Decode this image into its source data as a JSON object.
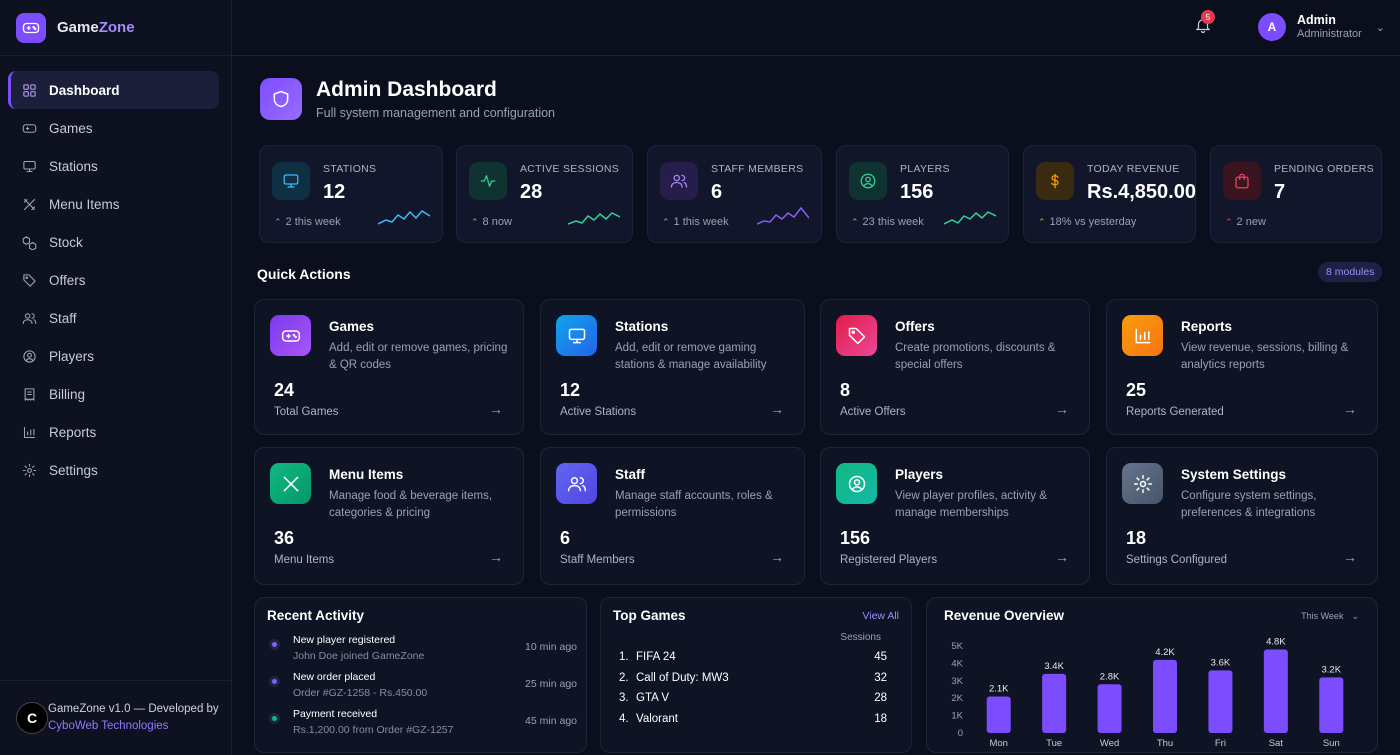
{
  "brand": {
    "name_part1": "Game",
    "name_part2": "Zone"
  },
  "sidebar": {
    "items": [
      {
        "label": "Dashboard",
        "icon": "grid-icon"
      },
      {
        "label": "Games",
        "icon": "gamepad-icon"
      },
      {
        "label": "Stations",
        "icon": "monitor-icon"
      },
      {
        "label": "Menu Items",
        "icon": "utensils-icon"
      },
      {
        "label": "Stock",
        "icon": "boxes-icon"
      },
      {
        "label": "Offers",
        "icon": "tag-icon"
      },
      {
        "label": "Staff",
        "icon": "users-icon"
      },
      {
        "label": "Players",
        "icon": "user-circle-icon"
      },
      {
        "label": "Billing",
        "icon": "receipt-icon"
      },
      {
        "label": "Reports",
        "icon": "bar-chart-icon"
      },
      {
        "label": "Settings",
        "icon": "gear-icon"
      }
    ]
  },
  "footer": {
    "avatar": "C",
    "line1": "GameZone v1.0 — Developed by",
    "link": "CyboWeb Technologies"
  },
  "topbar": {
    "notif_count": "5",
    "user_initial": "A",
    "user_name": "Admin",
    "user_role": "Administrator"
  },
  "header": {
    "title": "Admin Dashboard",
    "subtitle": "Full system management and configuration"
  },
  "stats": [
    {
      "label": "STATIONS",
      "value": "12",
      "trend": "2 this week",
      "color": "#38bdf8"
    },
    {
      "label": "ACTIVE SESSIONS",
      "value": "28",
      "trend": "8 now",
      "color": "#34d399"
    },
    {
      "label": "STAFF MEMBERS",
      "value": "6",
      "trend": "1 this week",
      "color": "#8b5cf6"
    },
    {
      "label": "PLAYERS",
      "value": "156",
      "trend": "23 this week",
      "color": "#34d399"
    },
    {
      "label": "TODAY REVENUE",
      "value": "Rs.4,850.00",
      "trend": "18% vs yesterday",
      "color": "#f59e0b"
    },
    {
      "label": "PENDING ORDERS",
      "value": "7",
      "trend": "2 new",
      "color": "#f43f5e"
    }
  ],
  "quick_actions": {
    "title": "Quick Actions",
    "badge": "8 modules",
    "cards": [
      {
        "title": "Games",
        "desc": "Add, edit or remove games, pricing & QR codes",
        "count": "24",
        "count_label": "Total Games"
      },
      {
        "title": "Stations",
        "desc": "Add, edit or remove gaming stations & manage availability",
        "count": "12",
        "count_label": "Active Stations"
      },
      {
        "title": "Offers",
        "desc": "Create promotions, discounts & special offers",
        "count": "8",
        "count_label": "Active Offers"
      },
      {
        "title": "Reports",
        "desc": "View revenue, sessions, billing & analytics reports",
        "count": "25",
        "count_label": "Reports Generated"
      },
      {
        "title": "Menu Items",
        "desc": "Manage food & beverage items, categories & pricing",
        "count": "36",
        "count_label": "Menu Items"
      },
      {
        "title": "Staff",
        "desc": "Manage staff accounts, roles & permissions",
        "count": "6",
        "count_label": "Staff Members"
      },
      {
        "title": "Players",
        "desc": "View player profiles, activity & manage memberships",
        "count": "156",
        "count_label": "Registered Players"
      },
      {
        "title": "System Settings",
        "desc": "Configure system settings, preferences & integrations",
        "count": "18",
        "count_label": "Settings Configured"
      }
    ]
  },
  "activity": {
    "title": "Recent Activity",
    "items": [
      {
        "title": "New player registered",
        "detail": "John Doe joined GameZone",
        "time": "10 min ago",
        "color": "#8b5cf6"
      },
      {
        "title": "New order placed",
        "detail": "Order #GZ-1258 - Rs.450.00",
        "time": "25 min ago",
        "color": "#8b5cf6"
      },
      {
        "title": "Payment received",
        "detail": "Rs.1,200.00 from Order #GZ-1257",
        "time": "45 min ago",
        "color": "#10b981"
      }
    ]
  },
  "top_games": {
    "title": "Top Games",
    "view_all": "View All",
    "sessions_header": "Sessions",
    "games": [
      {
        "rank": "1.",
        "name": "FIFA 24",
        "sessions": "45"
      },
      {
        "rank": "2.",
        "name": "Call of Duty: MW3",
        "sessions": "32"
      },
      {
        "rank": "3.",
        "name": "GTA V",
        "sessions": "28"
      },
      {
        "rank": "4.",
        "name": "Valorant",
        "sessions": "18"
      }
    ]
  },
  "revenue": {
    "title": "Revenue Overview",
    "period": "This Week"
  },
  "chart_data": {
    "type": "bar",
    "categories": [
      "Mon",
      "Tue",
      "Wed",
      "Thu",
      "Fri",
      "Sat",
      "Sun"
    ],
    "values": [
      2100,
      3400,
      2800,
      4200,
      3600,
      4800,
      3200
    ],
    "data_labels": [
      "2.1K",
      "3.4K",
      "2.8K",
      "4.2K",
      "3.6K",
      "4.8K",
      "3.2K"
    ],
    "yticks": [
      "0",
      "1K",
      "2K",
      "3K",
      "4K",
      "5K"
    ],
    "ylim": [
      0,
      5000
    ],
    "bar_color": "#7c4dff"
  }
}
